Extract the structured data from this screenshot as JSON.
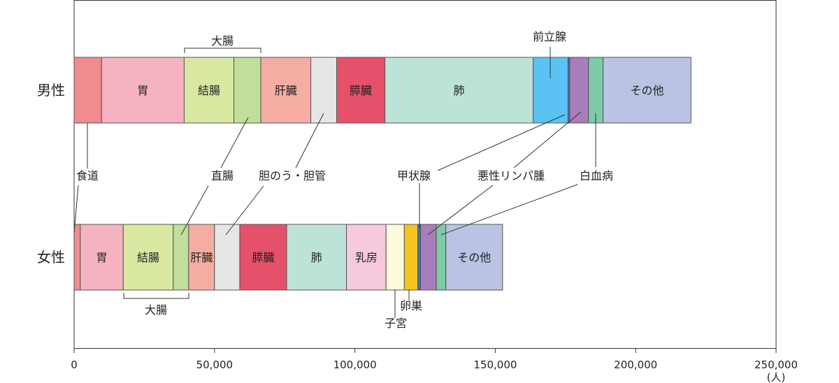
{
  "chart_data": {
    "type": "bar",
    "orientation": "horizontal-stacked",
    "xlim": [
      0,
      250000
    ],
    "x_ticks": [
      "0",
      "50,000",
      "100,000",
      "150,000",
      "200,000",
      "250,000"
    ],
    "x_unit": "(人)",
    "categories": [
      "男性",
      "女性"
    ],
    "groups": [
      {
        "category": "男性",
        "segments": [
          {
            "label": "食道",
            "value": 9800,
            "color": "#f08b8f"
          },
          {
            "label": "胃",
            "value": 29400,
            "color": "#f5b3c2"
          },
          {
            "label": "結腸",
            "value": 17700,
            "color": "#d9e8a0"
          },
          {
            "label": "直腸",
            "value": 9600,
            "color": "#bfdf9a"
          },
          {
            "label": "肝臓",
            "value": 17800,
            "color": "#f5ada3"
          },
          {
            "label": "胆のう・胆管",
            "value": 9200,
            "color": "#e6e6e6"
          },
          {
            "label": "膵臓",
            "value": 17200,
            "color": "#e5516a"
          },
          {
            "label": "肺",
            "value": 52800,
            "color": "#bde3d8"
          },
          {
            "label": "前立腺",
            "value": 12400,
            "color": "#5bc3f3"
          },
          {
            "label": "甲状腺",
            "value": 600,
            "color": "#3a6fc9"
          },
          {
            "label": "悪性リンパ腫",
            "value": 6700,
            "color": "#a87db9"
          },
          {
            "label": "白血病",
            "value": 5200,
            "color": "#7ccaa7"
          },
          {
            "label": "その他",
            "value": 31300,
            "color": "#bac3e4"
          }
        ]
      },
      {
        "category": "女性",
        "segments": [
          {
            "label": "食道",
            "value": 2200,
            "color": "#f08b8f"
          },
          {
            "label": "胃",
            "value": 15300,
            "color": "#f5b3c2"
          },
          {
            "label": "結腸",
            "value": 17800,
            "color": "#d9e8a0"
          },
          {
            "label": "直腸",
            "value": 5500,
            "color": "#bfdf9a"
          },
          {
            "label": "肝臓",
            "value": 9200,
            "color": "#f5ada3"
          },
          {
            "label": "胆のう・胆管",
            "value": 9000,
            "color": "#e6e6e6"
          },
          {
            "label": "膵臓",
            "value": 16700,
            "color": "#e5516a"
          },
          {
            "label": "肺",
            "value": 21300,
            "color": "#bde3d8"
          },
          {
            "label": "乳房",
            "value": 14100,
            "color": "#f6c9de"
          },
          {
            "label": "子宮",
            "value": 6500,
            "color": "#fefadc"
          },
          {
            "label": "卵巣",
            "value": 4800,
            "color": "#f7c31c"
          },
          {
            "label": "甲状腺",
            "value": 1000,
            "color": "#3a6fc9"
          },
          {
            "label": "悪性リンパ腫",
            "value": 5600,
            "color": "#a87db9"
          },
          {
            "label": "白血病",
            "value": 3400,
            "color": "#7ccaa7"
          },
          {
            "label": "その他",
            "value": 20200,
            "color": "#bac3e4"
          }
        ]
      }
    ],
    "inner_labels": {
      "男性": [
        "",
        "胃",
        "結腸",
        "",
        "肝臓",
        "",
        "膵臓",
        "肺",
        "",
        "",
        "",
        "",
        "その他"
      ],
      "女性": [
        "",
        "胃",
        "結腸",
        "",
        "肝臓",
        "",
        "膵臓",
        "肺",
        "乳房",
        "",
        "",
        "",
        "",
        "",
        "その他"
      ]
    },
    "brackets": {
      "male": "大腸",
      "female": "大腸"
    },
    "callouts": {
      "shokudo": "食道",
      "chokucho": "直腸",
      "tanno": "胆のう・胆管",
      "kojosen": "甲状腺",
      "lymph": "悪性リンパ腫",
      "hakketsu": "白血病",
      "zenritsusen": "前立腺",
      "ransou": "卵巣",
      "shikyu": "子宮"
    }
  }
}
